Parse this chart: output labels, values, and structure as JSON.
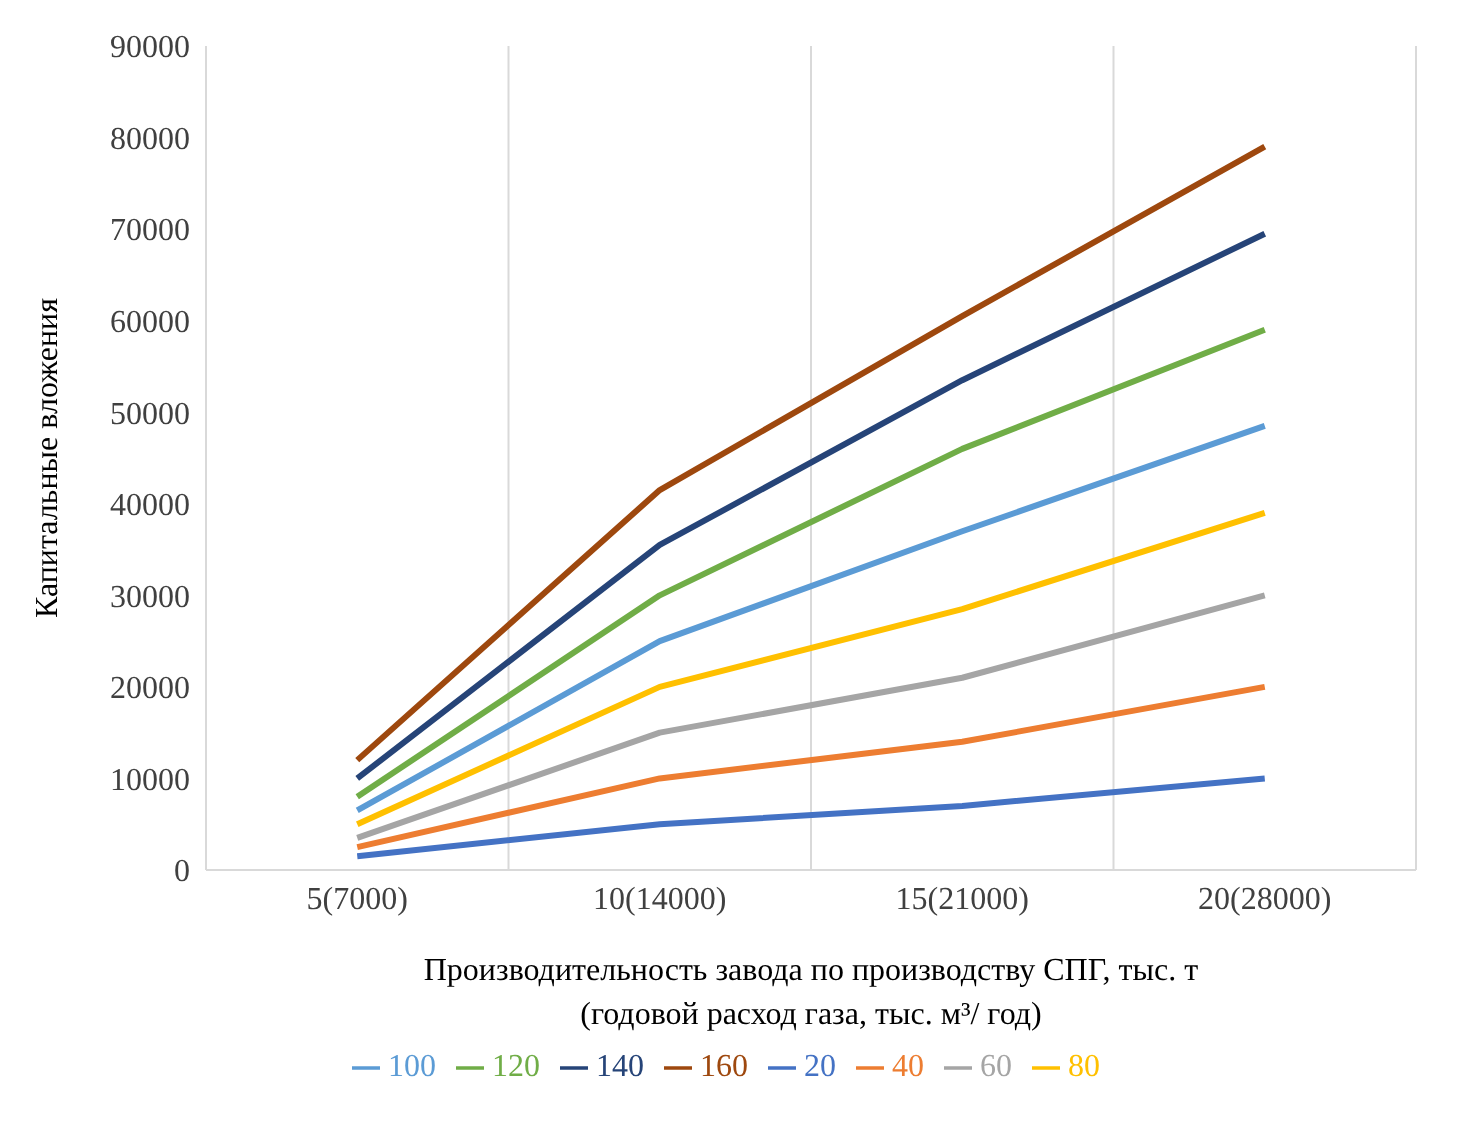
{
  "chart_data": {
    "type": "line",
    "ylabel": "Капитальные вложения",
    "xlabel": "Производительность завода по производству СПГ, тыс. т\n(годовой расход газа, тыс. м³/ год)",
    "categories": [
      "5(7000)",
      "10(14000)",
      "15(21000)",
      "20(28000)"
    ],
    "ylim": [
      0,
      90000
    ],
    "yticks": [
      0,
      10000,
      20000,
      30000,
      40000,
      50000,
      60000,
      70000,
      80000,
      90000
    ],
    "grid": "x",
    "legend": "bottom",
    "marker": "none",
    "line_style": "solid",
    "series": [
      {
        "name": "20",
        "color": "#4472c4",
        "values": [
          1500,
          5000,
          7000,
          10000
        ]
      },
      {
        "name": "40",
        "color": "#ed7d31",
        "values": [
          2500,
          10000,
          14000,
          20000
        ]
      },
      {
        "name": "60",
        "color": "#a5a5a5",
        "values": [
          3500,
          15000,
          21000,
          30000
        ]
      },
      {
        "name": "80",
        "color": "#ffc000",
        "values": [
          5000,
          20000,
          28500,
          39000
        ]
      },
      {
        "name": "100",
        "color": "#5b9bd5",
        "values": [
          6500,
          25000,
          37000,
          48500
        ]
      },
      {
        "name": "120",
        "color": "#70ad47",
        "values": [
          8000,
          30000,
          46000,
          59000
        ]
      },
      {
        "name": "140",
        "color": "#264478",
        "values": [
          10000,
          35500,
          53500,
          69500
        ]
      },
      {
        "name": "160",
        "color": "#9e480e",
        "values": [
          12000,
          41500,
          60500,
          79000
        ]
      }
    ]
  }
}
